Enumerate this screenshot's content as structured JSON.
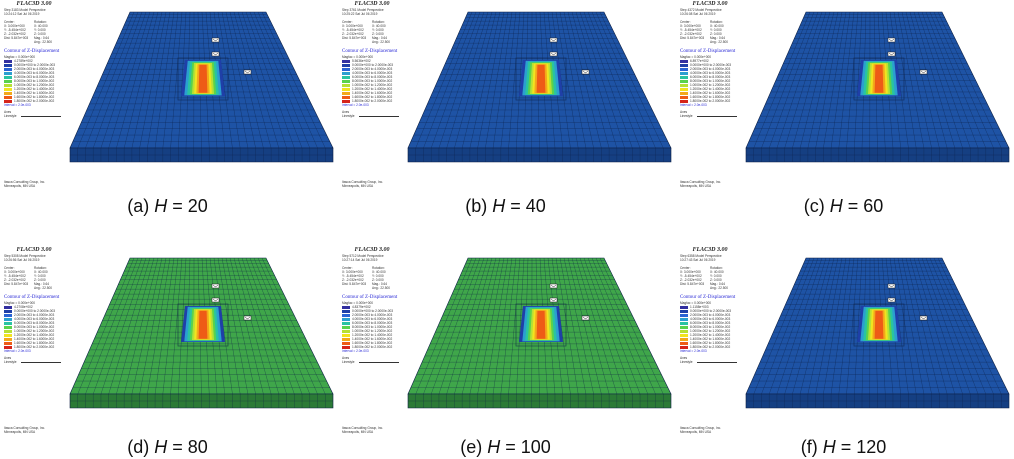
{
  "panels": [
    {
      "label": "(a)",
      "var": "H",
      "eq": " = ",
      "value": "20",
      "step": "Step 3183  Model Perspective",
      "time": "10:24:12 Sat Jul 06 2019",
      "mesh": "blue",
      "mx": "4.2789e+002"
    },
    {
      "label": "(b)",
      "var": "H",
      "eq": " = ",
      "value": "40",
      "step": "Step 3761  Model Perspective",
      "time": "10:25:22 Sat Jul 06 2019",
      "mesh": "blue",
      "mx": "5.5636e+002"
    },
    {
      "label": "(c)",
      "var": "H",
      "eq": " = ",
      "value": "60",
      "step": "Step 4372  Model Perspective",
      "time": "10:26:08 Sat Jul 06 2019",
      "mesh": "blue",
      "mx": "6.8977e+002"
    },
    {
      "label": "(d)",
      "var": "H",
      "eq": " = ",
      "value": "80",
      "step": "Step 5308  Model Perspective",
      "time": "10:26:56 Sat Jul 06 2019",
      "mesh": "green",
      "mx": "4.2708e+002"
    },
    {
      "label": "(e)",
      "var": "H",
      "eq": " = ",
      "value": "100",
      "step": "Step 5712  Model Perspective",
      "time": "10:27:14 Sat Jul 06 2019",
      "mesh": "green",
      "mx": "4.8379e+002"
    },
    {
      "label": "(f)",
      "var": "H",
      "eq": " = ",
      "value": "120",
      "step": "Step 6358  Model Perspective",
      "time": "10:27:43 Sat Jul 06 2019",
      "mesh": "blue",
      "mx": "1.1158e+003"
    }
  ],
  "flac": {
    "title": "FLAC3D 3.00",
    "center_label": "Center:",
    "rotation_label": "Rotation:",
    "center": [
      "X: 3.000e+000",
      "Y: -5.454e+002",
      "Z: -2.032e+002"
    ],
    "rotation": [
      "X:  40.000",
      "Y:   0.000",
      "Z:   0.000"
    ],
    "dist": "Dist: 5.847e+003",
    "mag": "Mag.:   0.64",
    "ang": "Ang.:  22.500",
    "contour_title": "Contour of Z-Displacement",
    "magfac": "Magfac = 0.000e+000",
    "legend": [
      "0.0000e+000 to 2.0000e-003",
      "2.0000e-003 to 4.0000e-003",
      "4.0000e-003 to 6.0000e-003",
      "6.0000e-003 to 8.0000e-003",
      "8.0000e-003 to 1.0000e-002",
      "1.0000e-002 to 1.2000e-002",
      "1.2000e-002 to 1.4000e-002",
      "1.4000e-002 to 1.6000e-002",
      "1.6000e-002 to 1.8000e-002",
      "1.8000e-002 to 2.0000e-002"
    ],
    "legend_colors": [
      "#1f3fa8",
      "#2a63d4",
      "#2b9fd0",
      "#29c3a2",
      "#5ad24c",
      "#b7e035",
      "#f2e41f",
      "#f3a81b",
      "#ee5b16",
      "#d6241a"
    ],
    "interval": "Interval = 2.0e-003",
    "axes": "Axes",
    "linestyle": "Linestyle",
    "company": "Itasca Consulting Group, Inc.",
    "city": "Minneapolis, MN  USA"
  },
  "colors": {
    "blue_mesh": "#1e53a5",
    "green_mesh": "#3fa64a",
    "grid_line": "#0c1f44",
    "accent": "#2a2ad6"
  }
}
